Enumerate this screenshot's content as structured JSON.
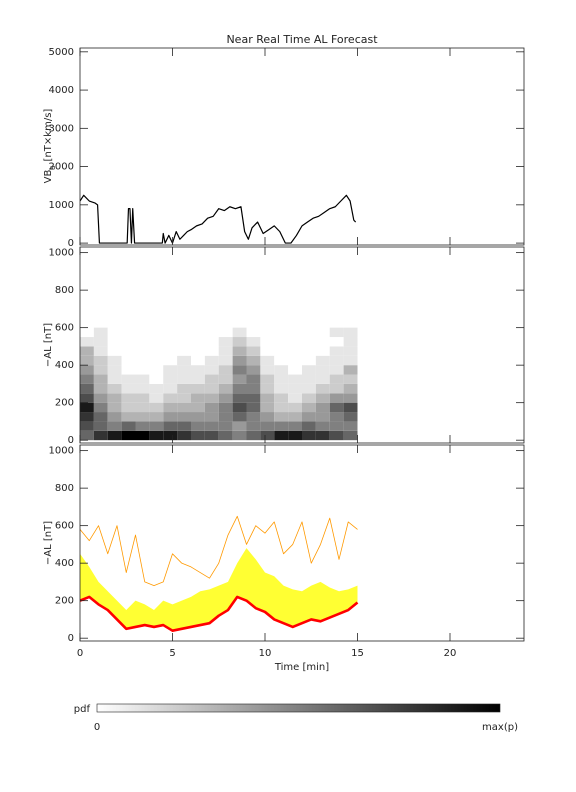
{
  "chart_data": [
    {
      "type": "line",
      "title": "Near Real Time AL Forecast",
      "ylabel": "VB",
      "ylabel_sub": "s",
      "ylabel_unit": "[nT×km/s]",
      "xlim": [
        0,
        24
      ],
      "xticks": [
        0,
        5,
        10,
        15,
        20
      ],
      "xtick_labels": false,
      "ylim": [
        -50,
        5100
      ],
      "yticks": [
        0,
        1000,
        2000,
        3000,
        4000,
        5000
      ],
      "x": [
        0,
        0.2,
        0.5,
        0.8,
        0.95,
        1.05,
        2.55,
        2.62,
        2.7,
        2.78,
        2.85,
        2.95,
        4.45,
        4.5,
        4.6,
        4.8,
        5.0,
        5.2,
        5.4,
        5.6,
        5.8,
        6.0,
        6.3,
        6.6,
        6.9,
        7.2,
        7.5,
        7.8,
        8.1,
        8.4,
        8.7,
        8.9,
        9.1,
        9.3,
        9.6,
        9.9,
        10.2,
        10.5,
        10.8,
        11.1,
        11.4,
        11.7,
        12.0,
        12.3,
        12.6,
        12.9,
        13.2,
        13.5,
        13.8,
        14.1,
        14.4,
        14.6,
        14.8,
        14.9
      ],
      "series": [
        {
          "color": "#000000",
          "values": [
            1100,
            1250,
            1100,
            1050,
            1000,
            0,
            0,
            900,
            900,
            0,
            900,
            0,
            0,
            250,
            0,
            200,
            0,
            300,
            100,
            200,
            300,
            350,
            450,
            500,
            650,
            700,
            900,
            850,
            950,
            900,
            950,
            300,
            100,
            400,
            550,
            250,
            350,
            450,
            300,
            0,
            0,
            200,
            450,
            550,
            650,
            700,
            800,
            900,
            950,
            1100,
            1250,
            1100,
            600,
            550
          ]
        }
      ]
    },
    {
      "type": "heatmap",
      "ylabel": "−AL [nT]",
      "xlim": [
        0,
        24
      ],
      "xticks": [
        0,
        5,
        10,
        15,
        20
      ],
      "xtick_labels": false,
      "ylim": [
        -15,
        1030
      ],
      "yticks": [
        0,
        200,
        400,
        600,
        800,
        1000
      ],
      "x_bins": [
        0,
        0.75,
        1.5,
        2.25,
        3,
        3.75,
        4.5,
        5.25,
        6,
        6.75,
        7.5,
        8.25,
        9,
        9.75,
        10.5,
        11.25,
        12,
        12.75,
        13.5,
        14.25,
        15
      ],
      "y_bins": [
        0,
        50,
        100,
        150,
        200,
        250,
        300,
        350,
        400,
        450,
        500,
        550,
        600
      ],
      "z": [
        [
          0.6,
          0.8,
          0.9,
          1.0,
          1.0,
          0.9,
          0.9,
          0.8,
          0.7,
          0.7,
          0.6,
          0.5,
          0.6,
          0.7,
          0.9,
          0.9,
          0.8,
          0.8,
          0.7,
          0.6
        ],
        [
          0.7,
          0.6,
          0.5,
          0.6,
          0.5,
          0.5,
          0.6,
          0.6,
          0.5,
          0.5,
          0.5,
          0.4,
          0.5,
          0.5,
          0.5,
          0.5,
          0.6,
          0.5,
          0.5,
          0.5
        ],
        [
          0.8,
          0.6,
          0.4,
          0.3,
          0.3,
          0.3,
          0.4,
          0.4,
          0.4,
          0.4,
          0.5,
          0.6,
          0.5,
          0.4,
          0.3,
          0.3,
          0.4,
          0.4,
          0.5,
          0.6
        ],
        [
          0.9,
          0.5,
          0.3,
          0.2,
          0.2,
          0.2,
          0.3,
          0.3,
          0.3,
          0.4,
          0.5,
          0.7,
          0.6,
          0.3,
          0.2,
          0.2,
          0.3,
          0.4,
          0.6,
          0.7
        ],
        [
          0.7,
          0.4,
          0.3,
          0.2,
          0.2,
          0.1,
          0.2,
          0.2,
          0.3,
          0.3,
          0.4,
          0.6,
          0.6,
          0.3,
          0.2,
          0.1,
          0.2,
          0.3,
          0.4,
          0.4
        ],
        [
          0.6,
          0.3,
          0.2,
          0.1,
          0.1,
          0.1,
          0.1,
          0.2,
          0.2,
          0.2,
          0.3,
          0.5,
          0.5,
          0.2,
          0.1,
          0.1,
          0.1,
          0.2,
          0.2,
          0.3
        ],
        [
          0.5,
          0.3,
          0.1,
          0.1,
          0.1,
          0,
          0.1,
          0.1,
          0.1,
          0.2,
          0.2,
          0.4,
          0.5,
          0.2,
          0.1,
          0.1,
          0.1,
          0.1,
          0.2,
          0.2
        ],
        [
          0.4,
          0.2,
          0.1,
          0,
          0,
          0,
          0.1,
          0.1,
          0.1,
          0.1,
          0.2,
          0.5,
          0.4,
          0.1,
          0.1,
          0,
          0.1,
          0.1,
          0.1,
          0.3
        ],
        [
          0.3,
          0.2,
          0.1,
          0,
          0,
          0,
          0,
          0.1,
          0,
          0.1,
          0.1,
          0.4,
          0.3,
          0.1,
          0,
          0,
          0,
          0.1,
          0.1,
          0.1
        ],
        [
          0.3,
          0.1,
          0,
          0,
          0,
          0,
          0,
          0,
          0,
          0,
          0.1,
          0.3,
          0.2,
          0,
          0,
          0,
          0,
          0,
          0.1,
          0.1
        ],
        [
          0.1,
          0.1,
          0,
          0,
          0,
          0,
          0,
          0,
          0,
          0,
          0.1,
          0.2,
          0.1,
          0,
          0,
          0,
          0,
          0,
          0,
          0.1
        ],
        [
          0,
          0.1,
          0,
          0,
          0,
          0,
          0,
          0,
          0,
          0,
          0,
          0.1,
          0,
          0,
          0,
          0,
          0,
          0,
          0.1,
          0.1
        ]
      ],
      "colorbar": {
        "label": "pdf",
        "min_label": "0",
        "max_label": "max(p)"
      }
    },
    {
      "type": "line",
      "ylabel": "−AL [nT]",
      "xlabel": "Time [min]",
      "xlim": [
        0,
        24
      ],
      "xticks": [
        0,
        5,
        10,
        15,
        20
      ],
      "xtick_labels": true,
      "ylim": [
        -15,
        1030
      ],
      "yticks": [
        0,
        200,
        400,
        600,
        800,
        1000
      ],
      "x": [
        0,
        0.5,
        1,
        1.5,
        2,
        2.5,
        3,
        3.5,
        4,
        4.5,
        5,
        5.5,
        6,
        6.5,
        7,
        7.5,
        8,
        8.5,
        9,
        9.5,
        10,
        10.5,
        11,
        11.5,
        12,
        12.5,
        13,
        13.5,
        14,
        14.5,
        15
      ],
      "series": [
        {
          "color": "#ff9900",
          "values": [
            580,
            520,
            600,
            450,
            600,
            350,
            550,
            300,
            280,
            300,
            450,
            400,
            380,
            350,
            320,
            400,
            550,
            650,
            500,
            600,
            560,
            620,
            450,
            500,
            620,
            400,
            500,
            640,
            420,
            620,
            580
          ]
        },
        {
          "color": "#ffff33",
          "fill": true,
          "values": [
            450,
            380,
            300,
            250,
            200,
            150,
            200,
            180,
            150,
            200,
            180,
            200,
            220,
            250,
            260,
            280,
            300,
            400,
            480,
            420,
            350,
            330,
            280,
            260,
            250,
            280,
            300,
            270,
            250,
            260,
            280
          ]
        },
        {
          "color": "#ff0000",
          "values": [
            200,
            220,
            180,
            150,
            100,
            50,
            60,
            70,
            60,
            70,
            40,
            50,
            60,
            70,
            80,
            120,
            150,
            220,
            200,
            160,
            140,
            100,
            80,
            60,
            80,
            100,
            90,
            110,
            130,
            150,
            190
          ]
        }
      ]
    }
  ]
}
